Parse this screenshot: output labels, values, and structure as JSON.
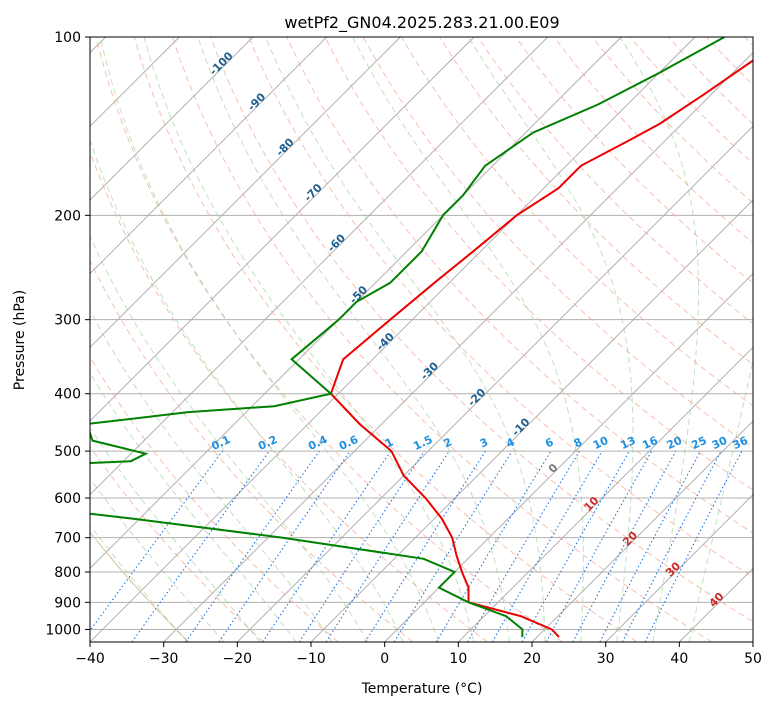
{
  "chart_data": {
    "type": "skew-t",
    "title": "wetPf2_GN04.2025.283.21.00.E09",
    "xlabel": "Temperature (°C)",
    "ylabel": "Pressure (hPa)",
    "xlim": [
      -40,
      50
    ],
    "plim": [
      1050,
      100
    ],
    "x_ticks": [
      -40,
      -30,
      -20,
      -10,
      0,
      10,
      20,
      30,
      40,
      50
    ],
    "p_ticks": [
      100,
      200,
      300,
      400,
      500,
      600,
      700,
      800,
      900,
      1000
    ],
    "isotherm_labels": [
      {
        "text": "-100",
        "t": -100,
        "p": 112
      },
      {
        "text": "-90",
        "t": -90,
        "p": 130
      },
      {
        "text": "-80",
        "t": -80,
        "p": 155
      },
      {
        "text": "-70",
        "t": -70,
        "p": 185
      },
      {
        "text": "-60",
        "t": -60,
        "p": 225
      },
      {
        "text": "-50",
        "t": -50,
        "p": 275
      },
      {
        "text": "-40",
        "t": -40,
        "p": 330
      },
      {
        "text": "-30",
        "t": -30,
        "p": 370
      },
      {
        "text": "-20",
        "t": -20,
        "p": 410
      },
      {
        "text": "-10",
        "t": -10,
        "p": 460
      },
      {
        "text": "0",
        "t": 0,
        "p": 540
      },
      {
        "text": "10",
        "t": 10,
        "p": 620
      },
      {
        "text": "20",
        "t": 20,
        "p": 710
      },
      {
        "text": "30",
        "t": 30,
        "p": 800
      },
      {
        "text": "40",
        "t": 40,
        "p": 900
      }
    ],
    "mixing_ratio_labels": [
      "0.1",
      "0.2",
      "0.4",
      "0.6",
      "1",
      "1.5",
      "2",
      "3",
      "4",
      "6",
      "8",
      "10",
      "13",
      "16",
      "20",
      "25",
      "30",
      "36"
    ],
    "mixing_ratio_label_pressure": 500,
    "series": [
      {
        "name": "temperature",
        "color": "#ee0000",
        "points": [
          [
            100,
            -27
          ],
          [
            110,
            -29
          ],
          [
            125,
            -31
          ],
          [
            140,
            -33
          ],
          [
            150,
            -35
          ],
          [
            165,
            -38
          ],
          [
            180,
            -38
          ],
          [
            200,
            -40
          ],
          [
            230,
            -41
          ],
          [
            260,
            -42
          ],
          [
            300,
            -43
          ],
          [
            350,
            -44
          ],
          [
            400,
            -41
          ],
          [
            450,
            -33
          ],
          [
            500,
            -25
          ],
          [
            550,
            -20
          ],
          [
            600,
            -14
          ],
          [
            650,
            -9
          ],
          [
            700,
            -5
          ],
          [
            750,
            -2
          ],
          [
            800,
            1
          ],
          [
            850,
            4
          ],
          [
            900,
            6
          ],
          [
            950,
            15
          ],
          [
            1000,
            21
          ],
          [
            1030,
            23
          ]
        ]
      },
      {
        "name": "dewpoint",
        "color": "#008000",
        "points": [
          [
            100,
            -36
          ],
          [
            115,
            -40
          ],
          [
            130,
            -44
          ],
          [
            145,
            -49
          ],
          [
            165,
            -51
          ],
          [
            185,
            -50
          ],
          [
            200,
            -50
          ],
          [
            230,
            -48
          ],
          [
            260,
            -48
          ],
          [
            280,
            -50
          ],
          [
            300,
            -50
          ],
          [
            350,
            -51
          ],
          [
            400,
            -41
          ],
          [
            420,
            -47
          ],
          [
            430,
            -58
          ],
          [
            450,
            -70
          ],
          [
            480,
            -67
          ],
          [
            505,
            -58
          ],
          [
            520,
            -59
          ],
          [
            535,
            -81
          ],
          [
            545,
            -92
          ],
          [
            560,
            -84
          ],
          [
            590,
            -73
          ],
          [
            605,
            -72
          ],
          [
            620,
            -67
          ],
          [
            650,
            -51
          ],
          [
            700,
            -28
          ],
          [
            760,
            -6
          ],
          [
            800,
            0
          ],
          [
            850,
            0
          ],
          [
            900,
            6
          ],
          [
            950,
            13
          ],
          [
            1000,
            17
          ],
          [
            1030,
            18
          ]
        ]
      }
    ]
  }
}
